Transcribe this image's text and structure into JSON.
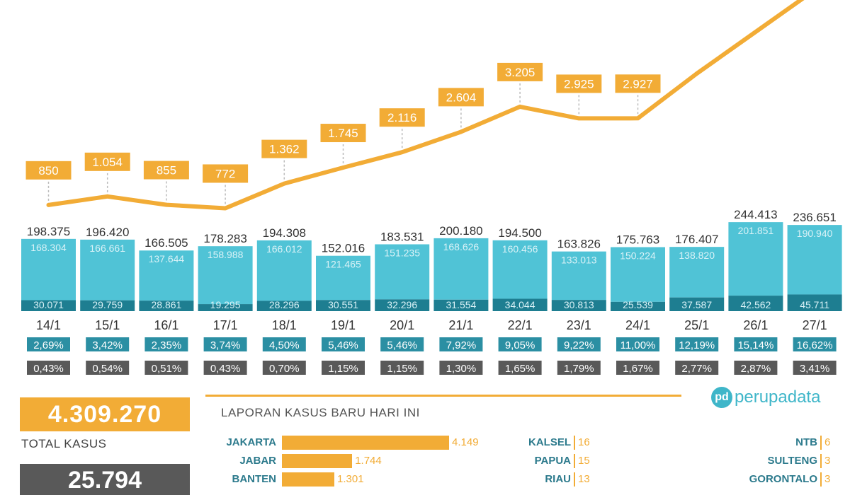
{
  "chart_data": {
    "type": "bar",
    "categories": [
      "14/1",
      "15/1",
      "16/1",
      "17/1",
      "18/1",
      "19/1",
      "20/1",
      "21/1",
      "22/1",
      "23/1",
      "24/1",
      "25/1",
      "26/1",
      "27/1"
    ],
    "totals": [
      198375,
      196420,
      166505,
      178283,
      194308,
      152016,
      183531,
      200180,
      194500,
      163826,
      175763,
      176407,
      244413,
      236651
    ],
    "series": [
      {
        "values": [
          168304,
          166661,
          137644,
          158988,
          166012,
          121465,
          151235,
          168626,
          160456,
          133013,
          150224,
          138820,
          201851,
          190940
        ]
      },
      {
        "values": [
          30071,
          29759,
          28861,
          19295,
          28296,
          30551,
          32296,
          31554,
          34044,
          30813,
          25539,
          37587,
          42562,
          45711
        ]
      }
    ],
    "line_series": {
      "values": [
        850,
        1054,
        855,
        772,
        1362,
        1745,
        2116,
        2604,
        3205,
        2925,
        2927,
        4000,
        5000,
        6000
      ],
      "labels": [
        "850",
        "1.054",
        "855",
        "772",
        "1.362",
        "1.745",
        "2.116",
        "2.604",
        "3.205",
        "2.925",
        "2.927",
        "",
        "",
        ""
      ]
    },
    "labels": {
      "totals": [
        "198.375",
        "196.420",
        "166.505",
        "178.283",
        "194.308",
        "152.016",
        "183.531",
        "200.180",
        "194.500",
        "163.826",
        "175.763",
        "176.407",
        "244.413",
        "236.651"
      ],
      "light": [
        "168.304",
        "166.661",
        "137.644",
        "158.988",
        "166.012",
        "121.465",
        "151.235",
        "168.626",
        "160.456",
        "133.013",
        "150.224",
        "138.820",
        "201.851",
        "190.940"
      ],
      "dark": [
        "30.071",
        "29.759",
        "28.861",
        "19.295",
        "28.296",
        "30.551",
        "32.296",
        "31.554",
        "34.044",
        "30.813",
        "25.539",
        "37.587",
        "42.562",
        "45.711"
      ]
    },
    "teal_pct": [
      "2,69%",
      "3,42%",
      "2,35%",
      "3,74%",
      "4,50%",
      "5,46%",
      "5,46%",
      "7,92%",
      "9,05%",
      "9,22%",
      "11,00%",
      "12,19%",
      "15,14%",
      "16,62%"
    ],
    "grey_pct": [
      "0,43%",
      "0,54%",
      "0,51%",
      "0,43%",
      "0,70%",
      "1,15%",
      "1,15%",
      "1,30%",
      "1,65%",
      "1,79%",
      "1,67%",
      "2,77%",
      "2,87%",
      "3,41%"
    ],
    "ylim": [
      0,
      244413
    ],
    "colors": {
      "orange": "#F2AC36",
      "light_teal": "#50C3D6",
      "dark_teal": "#1E7E91",
      "pct_teal": "#2B8FA3",
      "pct_grey": "#595959",
      "bar_label": "#D9F2F7"
    }
  },
  "summary": {
    "total_value": "4.309.270",
    "total_label": "TOTAL KASUS",
    "second_value": "25.794"
  },
  "brand": {
    "mark": "pd",
    "name": "perupadata"
  },
  "report": {
    "title": "LAPORAN KASUS BARU HARI INI",
    "bars": [
      {
        "name": "JAKARTA",
        "value": 4149,
        "label": "4.149"
      },
      {
        "name": "JABAR",
        "value": 1744,
        "label": "1.744"
      },
      {
        "name": "BANTEN",
        "value": 1301,
        "label": "1.301"
      }
    ],
    "col_mid": [
      {
        "name": "KALSEL",
        "value": "16"
      },
      {
        "name": "PAPUA",
        "value": "15"
      },
      {
        "name": "RIAU",
        "value": "13"
      }
    ],
    "col_right": [
      {
        "name": "NTB",
        "value": "6"
      },
      {
        "name": "SULTENG",
        "value": "3"
      },
      {
        "name": "GORONTALO",
        "value": "3"
      }
    ]
  }
}
